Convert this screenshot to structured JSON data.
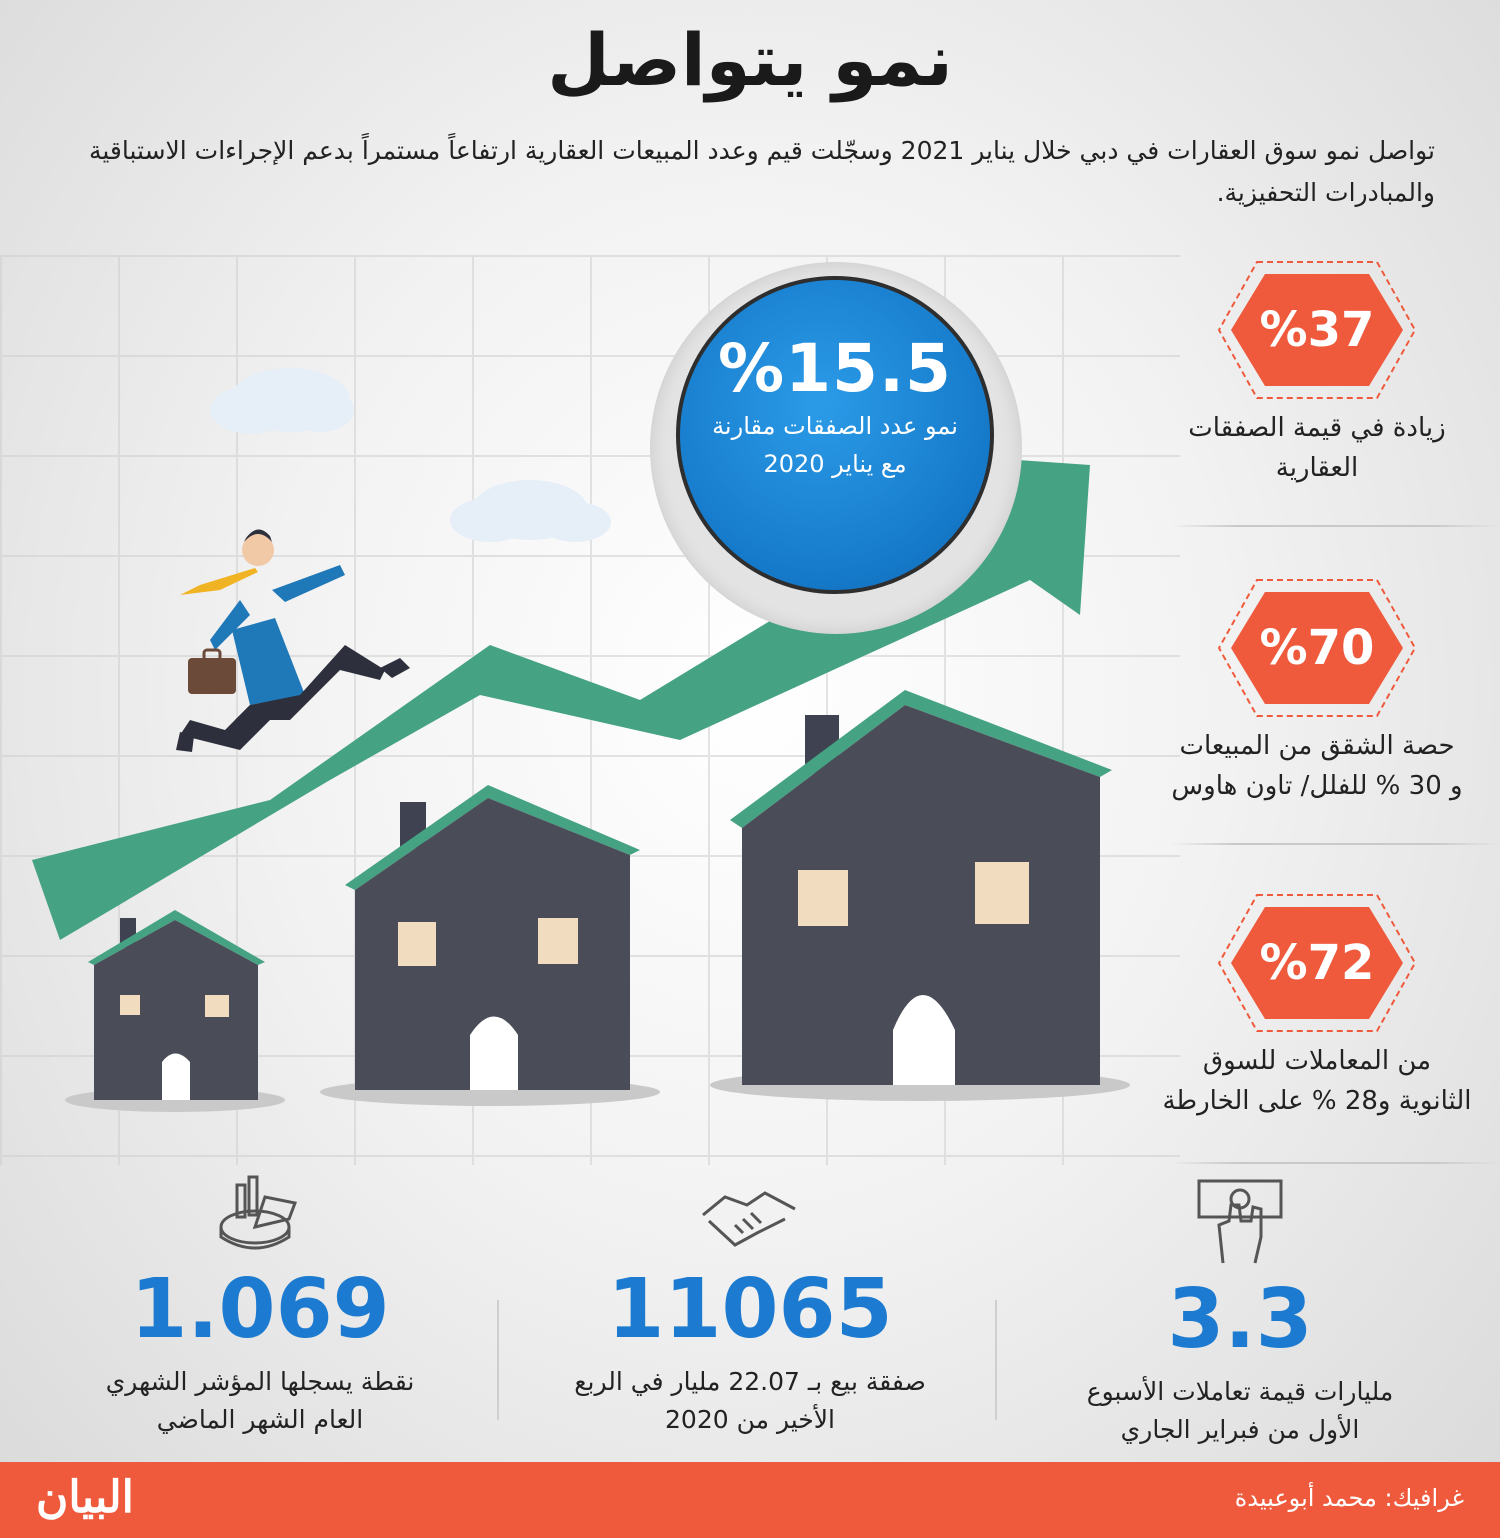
{
  "title": "نمو يتواصل",
  "intro": "تواصل نمو سوق العقارات في دبي خلال يناير 2021 وسجّلت قيم وعدد المبيعات العقارية ارتفاعاً مستمراً بدعم الإجراءات الاستباقية والمبادرات التحفيزية.",
  "bubble": {
    "value": "%15.5",
    "label_line1": "نمو عدد الصفقات مقارنة",
    "label_line2": "مع يناير 2020"
  },
  "side_stats": [
    {
      "value": "%37",
      "label_line1": "زيادة في قيمة الصفقات",
      "label_line2": "العقارية"
    },
    {
      "value": "%70",
      "label_line1": "حصة الشقق من المبيعات",
      "label_line2": "و 30 % للفلل/ تاون هاوس"
    },
    {
      "value": "%72",
      "label_line1": "من المعاملات للسوق",
      "label_line2": "الثانوية و28 % على الخارطة"
    }
  ],
  "bottom_stats": [
    {
      "icon": "chart-pie-icon",
      "value": "1.069",
      "label_line1": "نقطة يسجلها المؤشر الشهري",
      "label_line2": "العام الشهر الماضي"
    },
    {
      "icon": "handshake-icon",
      "value": "11065",
      "label_line1": "صفقة بيع بـ 22.07 مليار في الربع",
      "label_line2": "الأخير من 2020"
    },
    {
      "icon": "hand-money-icon",
      "value": "3.3",
      "label_line1": "مليارات قيمة تعاملات الأسبوع",
      "label_line2": "الأول من فبراير الجاري"
    }
  ],
  "footer": {
    "credit": "غرافيك: محمد أبوعبيدة",
    "logo": "البيان"
  },
  "colors": {
    "accent_orange": "#ef5a3c",
    "accent_blue": "#1c7bd0",
    "arrow_green": "#45a283",
    "house_gray": "#4a4d58"
  }
}
